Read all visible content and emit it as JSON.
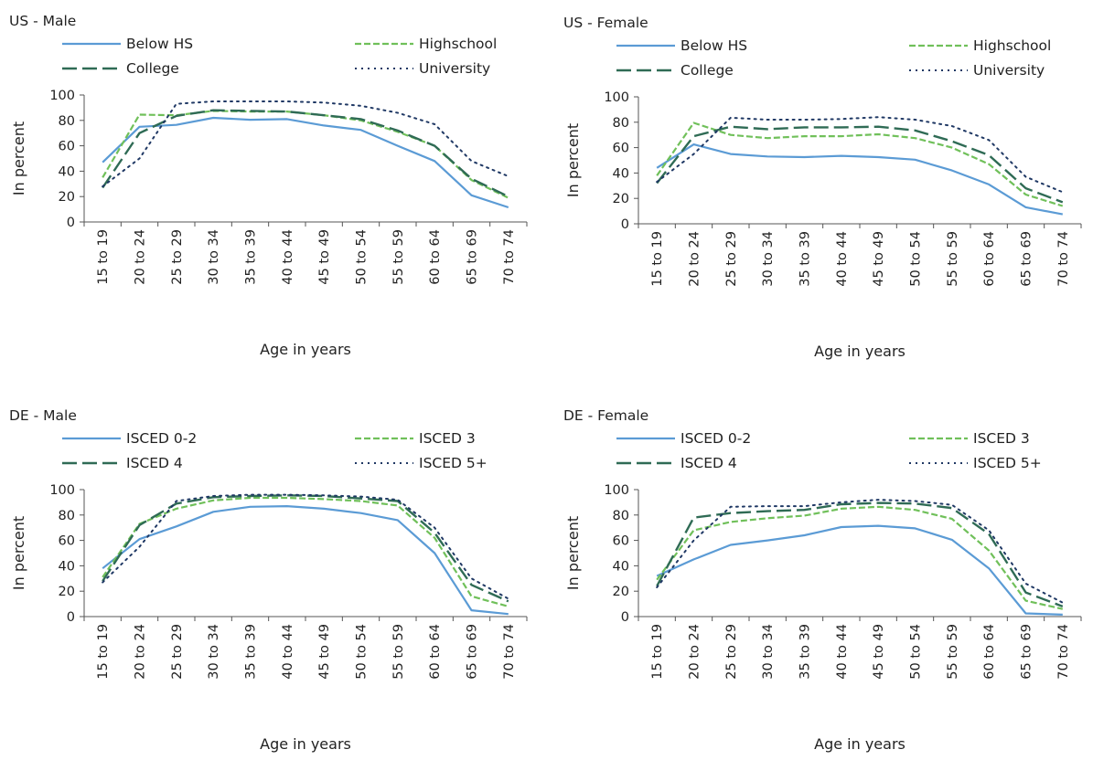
{
  "categories": [
    "15 to 19",
    "20 to 24",
    "25 to 29",
    "30 to 34",
    "35 to 39",
    "40 to 44",
    "45 to 49",
    "50 to 54",
    "55 to 59",
    "60 to 64",
    "65 to 69",
    "70 to 74"
  ],
  "colors": {
    "series1": "#5b9bd5",
    "series2": "#70c05a",
    "series3": "#2f6b55",
    "series4": "#1f3864",
    "axis": "#555555"
  },
  "chart_data": [
    {
      "type": "line",
      "title": "US - Male",
      "xlabel": "Age in years",
      "ylabel": "In percent",
      "ylim": [
        0,
        100
      ],
      "yticks": [
        0,
        20,
        40,
        60,
        80,
        100
      ],
      "grid": false,
      "legend": "top",
      "categories": [
        "15 to 19",
        "20 to 24",
        "25 to 29",
        "30 to 34",
        "35 to 39",
        "40 to 44",
        "45 to 49",
        "50 to 54",
        "55 to 59",
        "60 to 64",
        "65 to 69",
        "70 to 74"
      ],
      "series": [
        {
          "name": "Below HS",
          "values": [
            47,
            75,
            76.5,
            82,
            80.5,
            81,
            76,
            72.5,
            60,
            48,
            21,
            11.5
          ]
        },
        {
          "name": "Highschool",
          "values": [
            35,
            84.5,
            84,
            87.5,
            87,
            87,
            84,
            80,
            71,
            60,
            33,
            19
          ]
        },
        {
          "name": "College",
          "values": [
            27,
            70,
            83.5,
            88,
            87.5,
            87,
            84,
            81,
            72,
            60,
            34,
            20
          ]
        },
        {
          "name": "University",
          "values": [
            28,
            50,
            93,
            95,
            95,
            95,
            94,
            91.5,
            86,
            77,
            48,
            36
          ]
        }
      ]
    },
    {
      "type": "line",
      "title": "US - Female",
      "xlabel": "Age in years",
      "ylabel": "In percent",
      "ylim": [
        0,
        100
      ],
      "yticks": [
        0,
        20,
        40,
        60,
        80,
        100
      ],
      "grid": false,
      "legend": "top",
      "categories": [
        "15 to 19",
        "20 to 24",
        "25 to 29",
        "30 to 34",
        "35 to 39",
        "40 to 44",
        "45 to 49",
        "50 to 54",
        "55 to 59",
        "60 to 64",
        "65 to 69",
        "70 to 74"
      ],
      "series": [
        {
          "name": "Below HS",
          "values": [
            44,
            62.5,
            55,
            53,
            52.5,
            53.5,
            52.5,
            50.5,
            42,
            31,
            13,
            7.5
          ]
        },
        {
          "name": "Highschool",
          "values": [
            38,
            79.5,
            70,
            67.5,
            69,
            69,
            70.5,
            67.5,
            60,
            47,
            23,
            14
          ]
        },
        {
          "name": "College",
          "values": [
            32,
            69,
            76.5,
            74.5,
            76,
            76,
            76.5,
            73.5,
            65,
            54,
            28,
            17
          ]
        },
        {
          "name": "University",
          "values": [
            33,
            55,
            83.5,
            82,
            82,
            82.5,
            84,
            82,
            77,
            66,
            37,
            25
          ]
        }
      ]
    },
    {
      "type": "line",
      "title": "DE - Male",
      "xlabel": "Age in years",
      "ylabel": "In percent",
      "ylim": [
        0,
        100
      ],
      "yticks": [
        0,
        20,
        40,
        60,
        80,
        100
      ],
      "grid": false,
      "legend": "top",
      "categories": [
        "15 to 19",
        "20 to 24",
        "25 to 29",
        "30 to 34",
        "35 to 39",
        "40 to 44",
        "45 to 49",
        "50 to 54",
        "55 to 59",
        "60 to 64",
        "65 to 69",
        "70 to 74"
      ],
      "series": [
        {
          "name": "ISCED 0-2",
          "values": [
            38,
            61,
            71,
            82.5,
            86.5,
            87,
            85,
            81.5,
            76,
            50,
            5,
            2
          ]
        },
        {
          "name": "ISCED 3",
          "values": [
            31,
            73,
            85,
            91.5,
            93.5,
            93.5,
            92.5,
            91,
            87.5,
            62,
            16,
            8
          ]
        },
        {
          "name": "ISCED 4",
          "values": [
            28,
            72,
            89,
            94,
            95,
            95.5,
            95,
            93,
            91,
            66,
            25,
            12
          ]
        },
        {
          "name": "ISCED 5+",
          "values": [
            27,
            55,
            91,
            95,
            96,
            96,
            95.5,
            94.5,
            92,
            70,
            30,
            14
          ]
        }
      ]
    },
    {
      "type": "line",
      "title": "DE - Female",
      "xlabel": "Age in years",
      "ylabel": "In percent",
      "ylim": [
        0,
        100
      ],
      "yticks": [
        0,
        20,
        40,
        60,
        80,
        100
      ],
      "grid": false,
      "legend": "top",
      "categories": [
        "15 to 19",
        "20 to 24",
        "25 to 29",
        "30 to 34",
        "35 to 39",
        "40 to 44",
        "45 to 49",
        "50 to 54",
        "55 to 59",
        "60 to 64",
        "65 to 69",
        "70 to 74"
      ],
      "series": [
        {
          "name": "ISCED 0-2",
          "values": [
            32,
            45,
            56.5,
            60,
            64,
            70.5,
            71.5,
            69.5,
            60.5,
            38,
            2.5,
            1.5
          ]
        },
        {
          "name": "ISCED 3",
          "values": [
            29,
            68,
            74.5,
            77.5,
            79.5,
            85,
            86.5,
            84,
            77,
            52,
            12.5,
            6
          ]
        },
        {
          "name": "ISCED 4",
          "values": [
            24,
            78,
            81.5,
            83,
            84,
            88.5,
            89.5,
            89,
            85.5,
            65,
            19,
            8
          ]
        },
        {
          "name": "ISCED 5+",
          "values": [
            23,
            60,
            86.5,
            87,
            87,
            90,
            92,
            91,
            88,
            68,
            26,
            11
          ]
        }
      ]
    }
  ]
}
